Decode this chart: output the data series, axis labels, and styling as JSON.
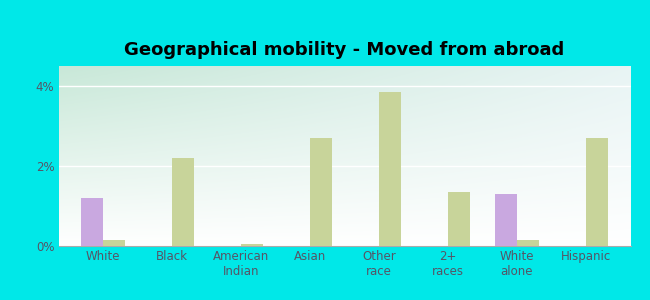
{
  "title": "Geographical mobility - Moved from abroad",
  "categories": [
    "White",
    "Black",
    "American\nIndian",
    "Asian",
    "Other\nrace",
    "2+\nraces",
    "White\nalone",
    "Hispanic"
  ],
  "sturgis_values": [
    1.2,
    0.0,
    0.0,
    0.0,
    0.0,
    0.0,
    1.3,
    0.0
  ],
  "south_dakota_values": [
    0.15,
    2.2,
    0.05,
    2.7,
    3.85,
    1.35,
    0.15,
    2.7
  ],
  "sturgis_color": "#c9a8e0",
  "south_dakota_color": "#c8d49a",
  "background_color": "#00e8e8",
  "plot_bg_top_left": "#c8e8d8",
  "plot_bg_top_right": "#e8f4f4",
  "plot_bg_bottom": "#ffffff",
  "ylim": [
    0,
    4.5
  ],
  "yticks": [
    0,
    2,
    4
  ],
  "ytick_labels": [
    "0%",
    "2%",
    "4%"
  ],
  "bar_width": 0.32,
  "title_fontsize": 13,
  "label_fontsize": 9,
  "tick_fontsize": 8.5,
  "tick_color": "#555566"
}
